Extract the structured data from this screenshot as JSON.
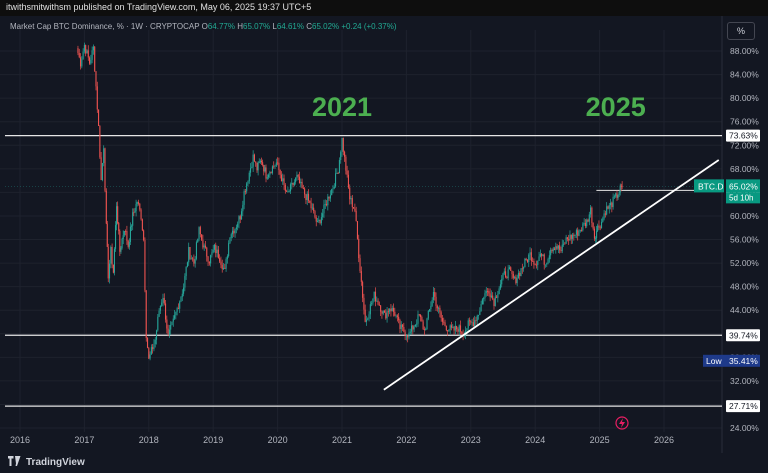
{
  "header": {
    "published_text": "itwithsmitwithsm published on TradingView.com, May 06, 2025 19:37 UTC+5"
  },
  "legend": {
    "title": "Market Cap BTC Dominance, % · 1W · CRYPTOCAP",
    "o_label": "O",
    "o_value": "64.77%",
    "h_label": "H",
    "h_value": "65.07%",
    "l_label": "L",
    "l_value": "64.61%",
    "c_label": "C",
    "c_value": "65.02%",
    "change": "+0.24 (+0.37%)"
  },
  "scale_button": "%",
  "footer": {
    "brand": "TradingView"
  },
  "colors": {
    "background": "#131722",
    "up": "#26a69a",
    "down": "#ef5350",
    "annotation": "#4caf50",
    "current_label": "#089981",
    "low_label": "#1e3a8a"
  },
  "chart_data": {
    "type": "candlestick",
    "series_name": "BTC.D",
    "x_axis": {
      "ticks": [
        "2016",
        "2017",
        "2018",
        "2019",
        "2020",
        "2021",
        "2022",
        "2023",
        "2024",
        "2025",
        "2026"
      ],
      "range": [
        2016.0,
        2026.95
      ]
    },
    "y_axis": {
      "unit": "%",
      "range": [
        24.0,
        90.0
      ],
      "ticks": [
        "88.00%",
        "84.00%",
        "80.00%",
        "76.00%",
        "72.00%",
        "68.00%",
        "64.00%",
        "60.00%",
        "56.00%",
        "52.00%",
        "48.00%",
        "44.00%",
        "40.00%",
        "36.00%",
        "32.00%",
        "28.00%",
        "24.00%"
      ]
    },
    "weekly_path": [
      [
        2016.88,
        88.5
      ],
      [
        2016.94,
        86.0
      ],
      [
        2017.0,
        89.0
      ],
      [
        2017.08,
        86.0
      ],
      [
        2017.14,
        88.5
      ],
      [
        2017.18,
        82.0
      ],
      [
        2017.22,
        75.0
      ],
      [
        2017.26,
        66.0
      ],
      [
        2017.3,
        72.0
      ],
      [
        2017.34,
        58.0
      ],
      [
        2017.37,
        50.0
      ],
      [
        2017.41,
        54.0
      ],
      [
        2017.45,
        50.5
      ],
      [
        2017.5,
        62.0
      ],
      [
        2017.55,
        54.0
      ],
      [
        2017.62,
        58.0
      ],
      [
        2017.68,
        55.0
      ],
      [
        2017.75,
        60.0
      ],
      [
        2017.82,
        62.5
      ],
      [
        2017.88,
        60.0
      ],
      [
        2017.92,
        56.0
      ],
      [
        2017.96,
        40.0
      ],
      [
        2018.0,
        35.5
      ],
      [
        2018.04,
        37.0
      ],
      [
        2018.1,
        39.0
      ],
      [
        2018.16,
        44.0
      ],
      [
        2018.22,
        46.5
      ],
      [
        2018.3,
        39.5
      ],
      [
        2018.38,
        42.0
      ],
      [
        2018.46,
        45.0
      ],
      [
        2018.54,
        48.0
      ],
      [
        2018.62,
        54.0
      ],
      [
        2018.7,
        52.0
      ],
      [
        2018.78,
        57.5
      ],
      [
        2018.86,
        54.5
      ],
      [
        2018.94,
        52.5
      ],
      [
        2019.02,
        54.5
      ],
      [
        2019.1,
        53.0
      ],
      [
        2019.18,
        50.5
      ],
      [
        2019.26,
        57.0
      ],
      [
        2019.34,
        58.0
      ],
      [
        2019.42,
        60.0
      ],
      [
        2019.48,
        64.0
      ],
      [
        2019.54,
        66.5
      ],
      [
        2019.62,
        70.0
      ],
      [
        2019.68,
        68.0
      ],
      [
        2019.75,
        69.5
      ],
      [
        2019.82,
        67.0
      ],
      [
        2019.9,
        68.0
      ],
      [
        2019.98,
        69.0
      ],
      [
        2020.06,
        66.5
      ],
      [
        2020.14,
        63.5
      ],
      [
        2020.22,
        65.0
      ],
      [
        2020.3,
        66.5
      ],
      [
        2020.38,
        64.5
      ],
      [
        2020.46,
        63.0
      ],
      [
        2020.54,
        61.0
      ],
      [
        2020.62,
        58.5
      ],
      [
        2020.7,
        60.5
      ],
      [
        2020.78,
        63.0
      ],
      [
        2020.86,
        65.0
      ],
      [
        2020.94,
        68.0
      ],
      [
        2021.0,
        73.0
      ],
      [
        2021.06,
        68.0
      ],
      [
        2021.12,
        63.0
      ],
      [
        2021.2,
        61.0
      ],
      [
        2021.26,
        53.5
      ],
      [
        2021.32,
        46.5
      ],
      [
        2021.36,
        42.0
      ],
      [
        2021.42,
        44.0
      ],
      [
        2021.5,
        46.5
      ],
      [
        2021.58,
        45.0
      ],
      [
        2021.66,
        43.0
      ],
      [
        2021.74,
        44.5
      ],
      [
        2021.82,
        43.5
      ],
      [
        2021.9,
        41.0
      ],
      [
        2021.96,
        40.5
      ],
      [
        2022.04,
        39.8
      ],
      [
        2022.12,
        41.5
      ],
      [
        2022.2,
        43.0
      ],
      [
        2022.28,
        40.5
      ],
      [
        2022.36,
        44.0
      ],
      [
        2022.42,
        47.0
      ],
      [
        2022.48,
        44.5
      ],
      [
        2022.56,
        42.0
      ],
      [
        2022.64,
        41.0
      ],
      [
        2022.72,
        40.5
      ],
      [
        2022.8,
        41.0
      ],
      [
        2022.88,
        40.2
      ],
      [
        2022.96,
        41.5
      ],
      [
        2023.04,
        42.0
      ],
      [
        2023.12,
        43.5
      ],
      [
        2023.2,
        46.5
      ],
      [
        2023.28,
        47.5
      ],
      [
        2023.36,
        45.5
      ],
      [
        2023.44,
        48.0
      ],
      [
        2023.52,
        50.0
      ],
      [
        2023.6,
        50.5
      ],
      [
        2023.68,
        49.0
      ],
      [
        2023.76,
        50.5
      ],
      [
        2023.84,
        52.0
      ],
      [
        2023.92,
        53.5
      ],
      [
        2024.0,
        52.0
      ],
      [
        2024.08,
        53.5
      ],
      [
        2024.16,
        52.0
      ],
      [
        2024.24,
        54.5
      ],
      [
        2024.32,
        55.0
      ],
      [
        2024.4,
        54.0
      ],
      [
        2024.48,
        56.0
      ],
      [
        2024.56,
        56.5
      ],
      [
        2024.64,
        57.0
      ],
      [
        2024.72,
        58.0
      ],
      [
        2024.8,
        59.0
      ],
      [
        2024.86,
        61.0
      ],
      [
        2024.92,
        56.5
      ],
      [
        2024.97,
        58.0
      ],
      [
        2025.03,
        59.0
      ],
      [
        2025.09,
        61.0
      ],
      [
        2025.15,
        61.5
      ],
      [
        2025.21,
        62.5
      ],
      [
        2025.27,
        63.5
      ],
      [
        2025.32,
        64.5
      ],
      [
        2025.35,
        65.02
      ]
    ],
    "horizontal_levels": [
      {
        "value": 73.63,
        "label": "73.63%"
      },
      {
        "value": 39.74,
        "label": "39.74%"
      },
      {
        "value": 27.71,
        "label": "27.71%"
      }
    ],
    "short_level": {
      "value": 64.34,
      "label": "64.34%",
      "from_x": 2024.95
    },
    "trendline": {
      "x1": 2021.65,
      "y1": 30.5,
      "x2": 2026.85,
      "y2": 69.5
    },
    "current": {
      "symbol": "BTC.D",
      "value": 65.02,
      "label": "65.02%",
      "countdown": "5d 10h"
    },
    "low": {
      "label": "Low",
      "value": 35.41,
      "value_label": "35.41%"
    },
    "annotations": [
      {
        "text": "2021",
        "x": 2021.0,
        "y": 77.0
      },
      {
        "text": "2025",
        "x": 2025.25,
        "y": 77.0
      }
    ]
  }
}
